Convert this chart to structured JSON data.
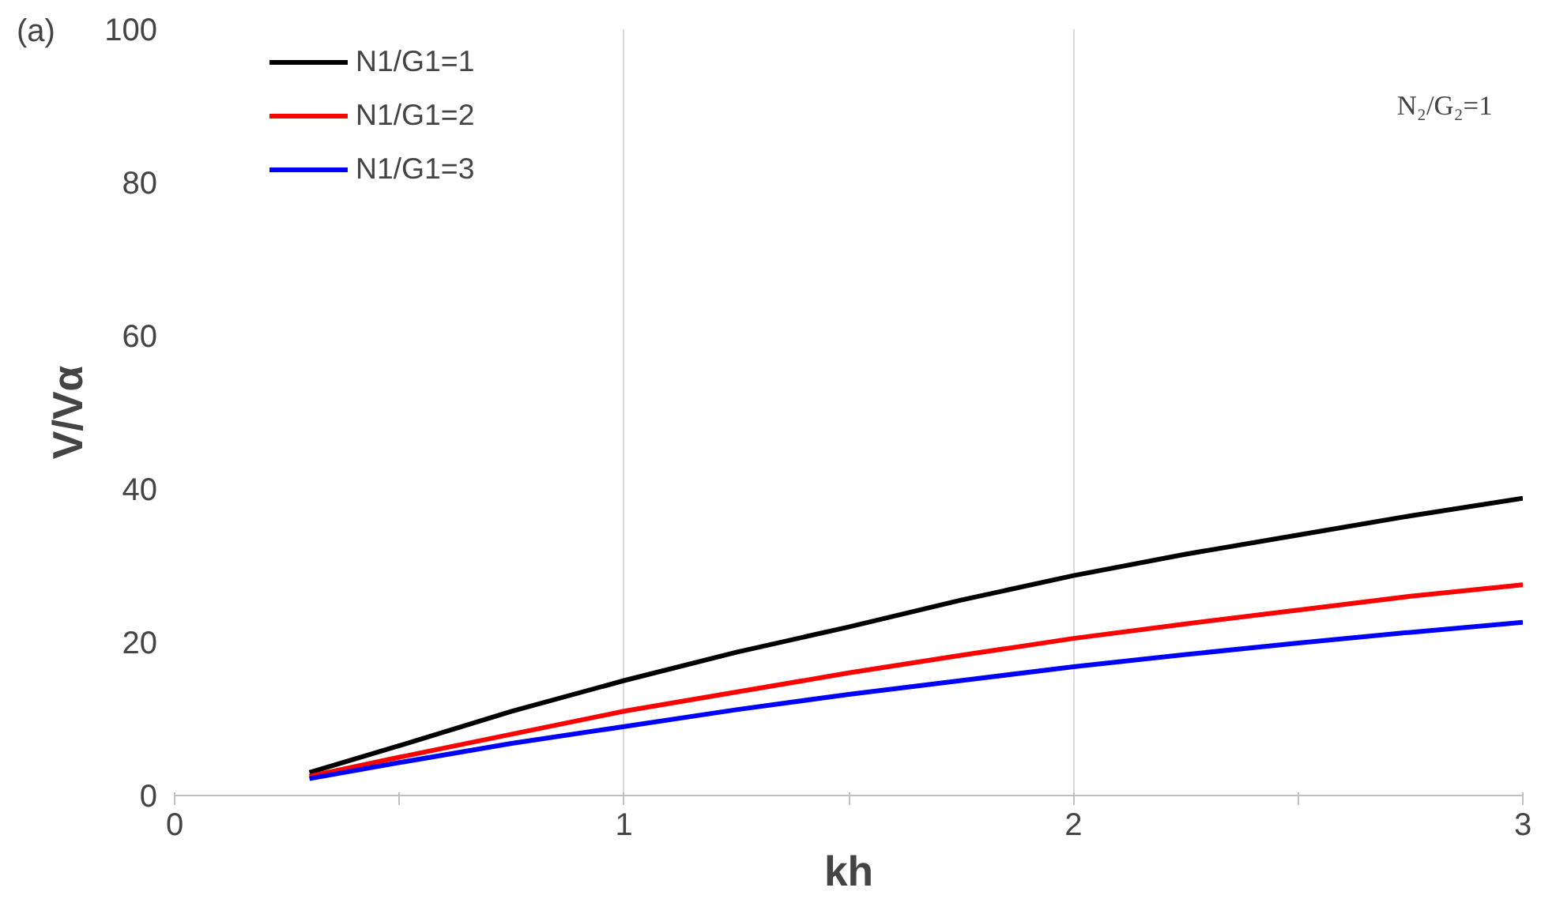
{
  "chart_data": {
    "type": "line",
    "xlabel": "kh",
    "ylabel": "V/Vα",
    "x": [
      0.3,
      0.5,
      0.75,
      1,
      1.25,
      1.5,
      1.75,
      2,
      2.25,
      2.5,
      2.75,
      3
    ],
    "series": [
      {
        "name": "N1/G1=1",
        "color": "#000000",
        "values": [
          3,
          6.5,
          11,
          15,
          18.7,
          22,
          25.5,
          28.7,
          31.5,
          34,
          36.5,
          38.8
        ]
      },
      {
        "name": "N1/G1=2",
        "color": "#ff0000",
        "values": [
          2.5,
          5,
          8,
          11,
          13.5,
          16,
          18.3,
          20.5,
          22.4,
          24.2,
          26,
          27.5
        ]
      },
      {
        "name": "N1/G1=3",
        "color": "#0000ff",
        "values": [
          2.2,
          4.3,
          6.8,
          9,
          11.2,
          13.2,
          15,
          16.8,
          18.4,
          19.9,
          21.3,
          22.6
        ]
      }
    ],
    "xlim": [
      0,
      3
    ],
    "ylim": [
      0,
      100
    ],
    "xticks": [
      0,
      {
        "value": 0.5,
        "label": null
      },
      1,
      {
        "value": 1.5,
        "label": null
      },
      2,
      {
        "value": 2.5,
        "label": null
      },
      3
    ],
    "yticks": [
      0,
      20,
      40,
      60,
      80,
      100
    ],
    "grid": "x",
    "legend": "top left",
    "marker": "none",
    "line_style": "solid",
    "annotations": [
      "(a)",
      "N₂/G₂=1"
    ]
  }
}
